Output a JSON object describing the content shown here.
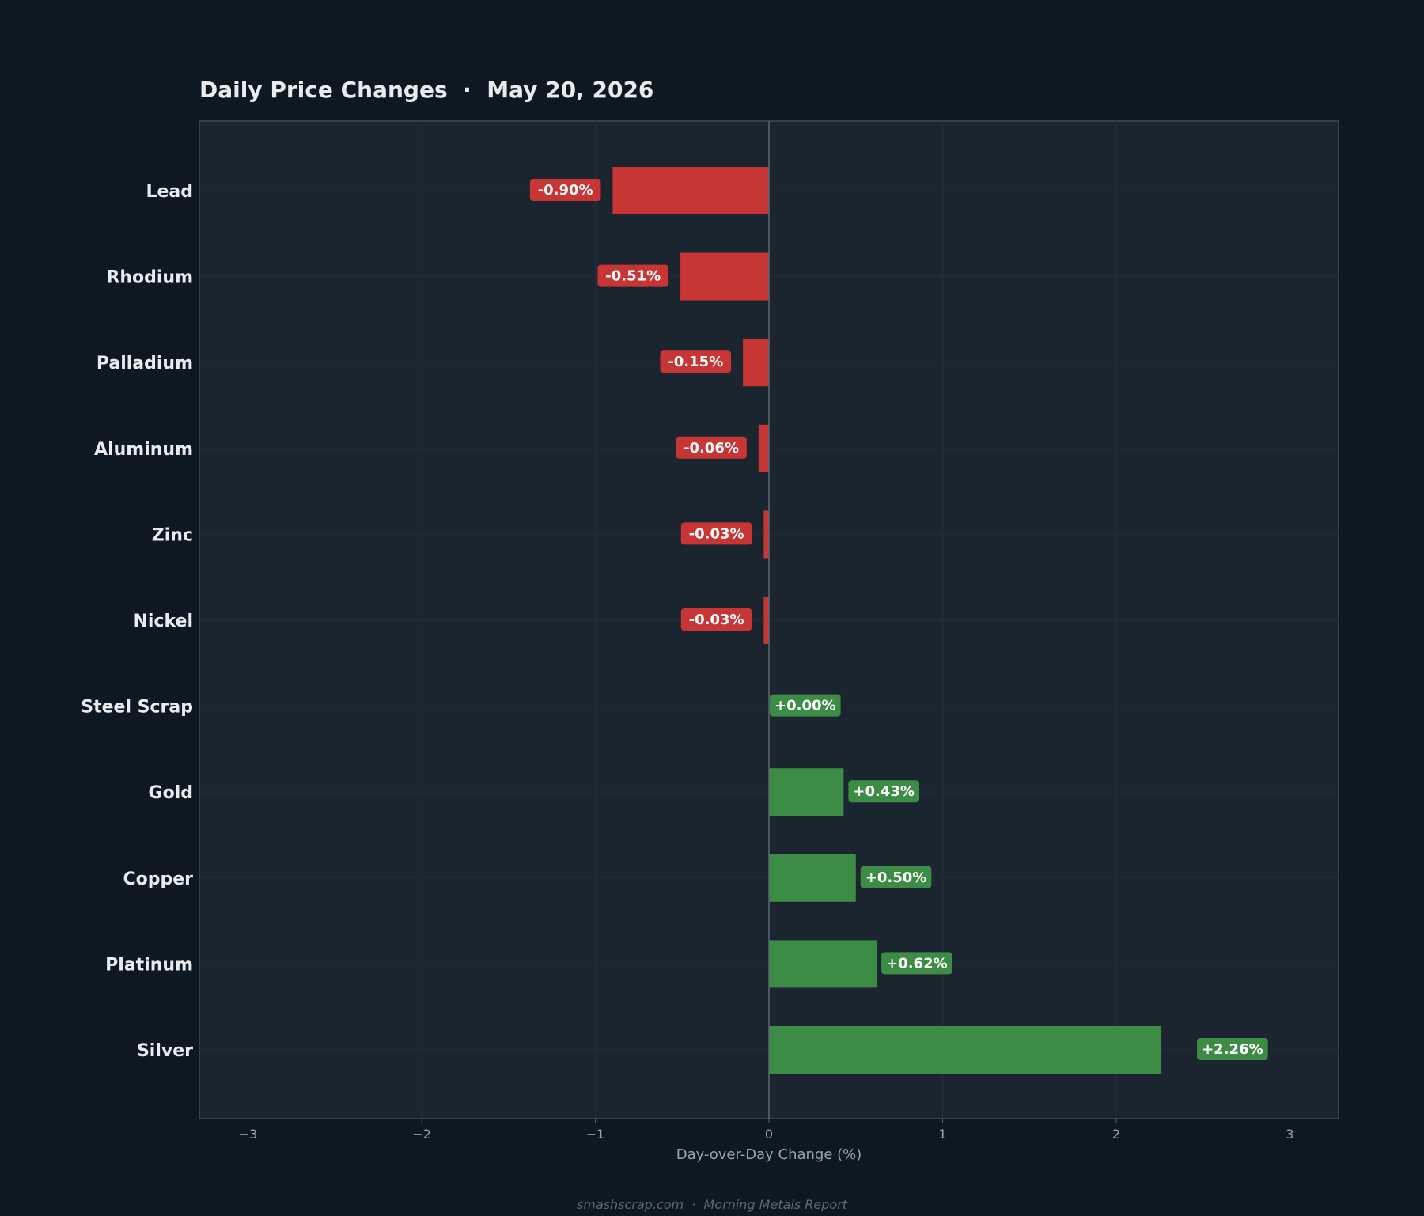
{
  "chart_data": {
    "type": "bar",
    "orientation": "horizontal",
    "title": "Daily Price Changes  ·  May 20, 2026",
    "xlabel": "Day-over-Day Change (%)",
    "ylabel": "",
    "xlim": [
      -3.3,
      3.3
    ],
    "xticks": [
      -3,
      -2,
      -1,
      0,
      1,
      2,
      3
    ],
    "xtick_labels": [
      "−3",
      "−2",
      "−1",
      "0",
      "1",
      "2",
      "3"
    ],
    "grid": true,
    "legend": "none",
    "categories": [
      "Lead",
      "Rhodium",
      "Palladium",
      "Aluminum",
      "Zinc",
      "Nickel",
      "Steel Scrap",
      "Gold",
      "Copper",
      "Platinum",
      "Silver"
    ],
    "values": [
      -0.9,
      -0.51,
      -0.15,
      -0.06,
      -0.03,
      -0.03,
      0.0,
      0.43,
      0.5,
      0.62,
      2.26
    ],
    "value_labels": [
      "-0.90%",
      "-0.51%",
      "-0.15%",
      "-0.06%",
      "-0.03%",
      "-0.03%",
      "+0.00%",
      "+0.43%",
      "+0.50%",
      "+0.62%",
      "+2.26%"
    ],
    "colors": {
      "negative": "#c73535",
      "positive": "#3d8c45",
      "background": "#0e1822",
      "plot_background": "#1b2530",
      "text": "#e8ecf0",
      "muted_text": "#9aa4ae"
    }
  },
  "footer": "smashscrap.com  ·  Morning Metals Report"
}
